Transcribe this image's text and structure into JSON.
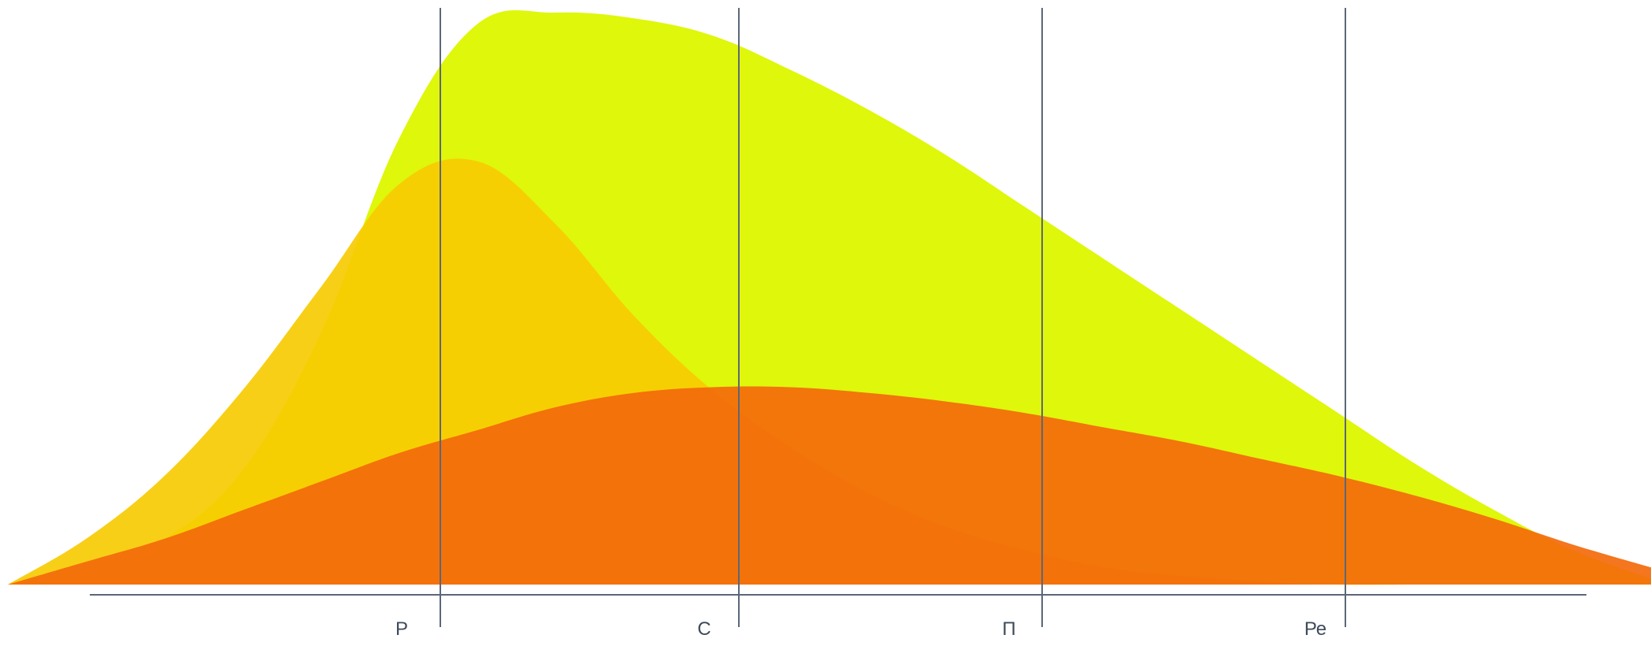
{
  "chart_data": {
    "type": "area",
    "stage_labels": [
      "Р",
      "С",
      "П",
      "Ре"
    ],
    "grid": false,
    "legend": "none",
    "colors": {
      "axis": "#5b6778",
      "dividers": "#5b6778",
      "labels": "#3f4a5a"
    },
    "series": [
      {
        "color": "#dff70a",
        "peak": 1.0,
        "peak_x": 0.84,
        "values": [
          0,
          0.03,
          0.08,
          0.2,
          0.44,
          0.78,
          0.98,
          1.0,
          0.99,
          0.96,
          0.9,
          0.83,
          0.75,
          0.66,
          0.57,
          0.48,
          0.39,
          0.3,
          0.21,
          0.13,
          0.06,
          0.01
        ]
      },
      {
        "color": "#f7cb03",
        "peak": 0.74,
        "peak_x": 0.62,
        "values": [
          0,
          0.08,
          0.19,
          0.34,
          0.52,
          0.7,
          0.74,
          0.63,
          0.47,
          0.34,
          0.24,
          0.16,
          0.1,
          0.06,
          0.03,
          0.015,
          0.005,
          0,
          0,
          0,
          0,
          0
        ]
      },
      {
        "color": "#f36a0b",
        "peak": 0.35,
        "peak_x": 1.45,
        "values": [
          0,
          0.04,
          0.08,
          0.13,
          0.18,
          0.23,
          0.27,
          0.31,
          0.335,
          0.345,
          0.345,
          0.335,
          0.32,
          0.3,
          0.275,
          0.25,
          0.22,
          0.19,
          0.155,
          0.115,
          0.07,
          0.03
        ]
      }
    ]
  }
}
